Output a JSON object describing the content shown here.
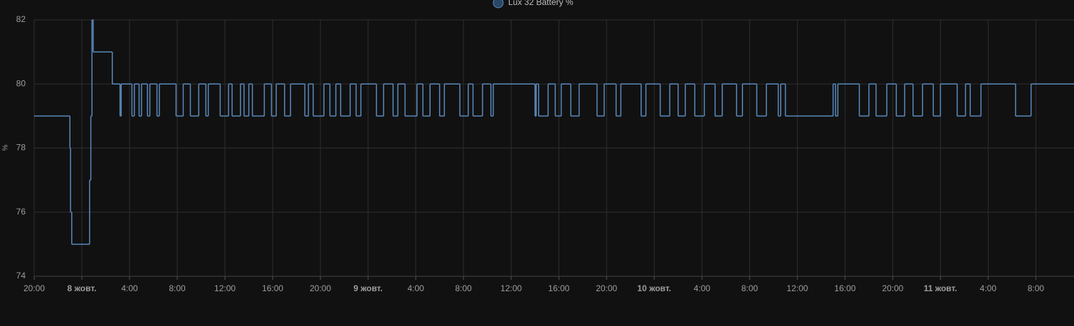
{
  "chart_data": {
    "type": "line",
    "step": true,
    "series": [
      {
        "name": "Lux 32 Battery %",
        "color": "#5a89bd",
        "x": [
          0,
          3.0,
          3.05,
          3.15,
          4.65,
          4.75,
          4.85,
          4.95,
          6.55,
          7.2,
          7.3,
          8.2,
          8.4,
          8.8,
          9.0,
          9.5,
          9.7,
          10.3,
          10.5,
          11.9,
          12.5,
          13.1,
          13.8,
          14.4,
          14.6,
          15.6,
          16.3,
          16.6,
          17.3,
          17.6,
          18.0,
          18.3,
          19.3,
          19.9,
          20.3,
          21.0,
          21.5,
          22.7,
          23.0,
          23.4,
          24.3,
          24.8,
          25.3,
          25.7,
          26.5,
          27.0,
          27.4,
          28.7,
          29.3,
          30.1,
          30.5,
          31.1,
          32.1,
          32.6,
          33.2,
          34.0,
          34.4,
          35.7,
          36.4,
          36.8,
          37.6,
          38.3,
          38.5,
          42.0,
          42.1,
          42.3,
          43.1,
          43.7,
          44.2,
          45.0,
          45.7,
          47.2,
          47.8,
          48.8,
          49.2,
          50.9,
          51.3,
          52.5,
          53.3,
          54.0,
          54.6,
          55.4,
          56.2,
          57.1,
          57.7,
          58.9,
          59.4,
          60.6,
          61.4,
          62.4,
          62.6,
          63.0,
          67.0,
          67.2,
          67.4,
          69.2,
          70.0,
          70.6,
          71.5,
          72.3,
          73.0,
          73.7,
          74.5,
          75.4,
          76.0,
          77.4,
          78.1,
          78.5,
          79.4,
          82.3,
          83.6
        ],
        "values": [
          79,
          78,
          76,
          75,
          77,
          79,
          82,
          81,
          80,
          79,
          80,
          79,
          80,
          79,
          80,
          79,
          80,
          79,
          80,
          79,
          80,
          79,
          80,
          79,
          80,
          79,
          80,
          79,
          80,
          79,
          80,
          79,
          80,
          79,
          80,
          79,
          80,
          79,
          80,
          79,
          80,
          79,
          80,
          79,
          80,
          79,
          80,
          79,
          80,
          79,
          80,
          79,
          80,
          79,
          80,
          79,
          80,
          79,
          80,
          79,
          80,
          79,
          80,
          79,
          80,
          79,
          80,
          79,
          80,
          79,
          80,
          79,
          80,
          79,
          80,
          79,
          80,
          79,
          80,
          79,
          80,
          79,
          80,
          79,
          80,
          79,
          80,
          79,
          80,
          79,
          80,
          79,
          80,
          79,
          80,
          79,
          80,
          79,
          80,
          79,
          80,
          79,
          80,
          79,
          80,
          79,
          80,
          79,
          80,
          79,
          80
        ]
      }
    ],
    "y_label": "%",
    "xlim": [
      0,
      87.2
    ],
    "ylim": [
      74,
      82
    ],
    "xticks": [
      {
        "value": 0,
        "label": "20:00"
      },
      {
        "value": 4,
        "label": "8 жовт."
      },
      {
        "value": 8,
        "label": "4:00"
      },
      {
        "value": 12,
        "label": "8:00"
      },
      {
        "value": 16,
        "label": "12:00"
      },
      {
        "value": 20,
        "label": "16:00"
      },
      {
        "value": 24,
        "label": "20:00"
      },
      {
        "value": 28,
        "label": "9 жовт."
      },
      {
        "value": 32,
        "label": "4:00"
      },
      {
        "value": 36,
        "label": "8:00"
      },
      {
        "value": 40,
        "label": "12:00"
      },
      {
        "value": 44,
        "label": "16:00"
      },
      {
        "value": 48,
        "label": "20:00"
      },
      {
        "value": 52,
        "label": "10 жовт."
      },
      {
        "value": 56,
        "label": "4:00"
      },
      {
        "value": 60,
        "label": "8:00"
      },
      {
        "value": 64,
        "label": "12:00"
      },
      {
        "value": 68,
        "label": "16:00"
      },
      {
        "value": 72,
        "label": "20:00"
      },
      {
        "value": 76,
        "label": "11 жовт."
      },
      {
        "value": 80,
        "label": "4:00"
      },
      {
        "value": 84,
        "label": "8:00"
      }
    ],
    "yticks": [
      74,
      76,
      78,
      80,
      82
    ],
    "grid": true
  }
}
